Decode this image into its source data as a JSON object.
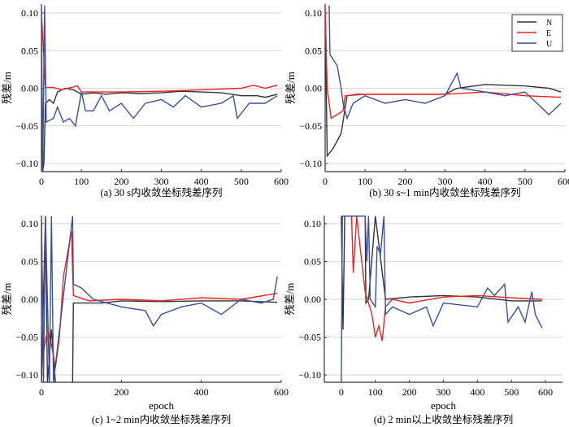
{
  "colors": {
    "N": "#333333",
    "E": "#ee2222",
    "U": "#3a4fa0",
    "grid": "#dddddd"
  },
  "legend": [
    "N",
    "E",
    "U"
  ],
  "chart_data": [
    {
      "type": "line",
      "title": "(a) 30 s内收敛坐标残差序列",
      "xlabel": "",
      "ylabel": "残差/m",
      "xlim": [
        0,
        600
      ],
      "ylim": [
        -0.11,
        0.11
      ],
      "xticks": [
        0,
        100,
        200,
        300,
        400,
        500,
        600
      ],
      "yticks": [
        -0.1,
        -0.05,
        0.0,
        0.05,
        0.1
      ],
      "grid": true,
      "series": [
        {
          "name": "N",
          "points": [
            [
              0,
              0.03
            ],
            [
              3,
              -0.11
            ],
            [
              6,
              -0.1
            ],
            [
              10,
              -0.02
            ],
            [
              20,
              -0.015
            ],
            [
              30,
              -0.02
            ],
            [
              40,
              -0.005
            ],
            [
              60,
              0
            ],
            [
              80,
              -0.002
            ],
            [
              100,
              -0.008
            ],
            [
              130,
              -0.006
            ],
            [
              160,
              -0.008
            ],
            [
              200,
              -0.006
            ],
            [
              250,
              -0.007
            ],
            [
              300,
              -0.006
            ],
            [
              350,
              -0.004
            ],
            [
              400,
              -0.005
            ],
            [
              450,
              -0.006
            ],
            [
              500,
              -0.01
            ],
            [
              540,
              -0.01
            ],
            [
              560,
              -0.012
            ],
            [
              590,
              -0.008
            ]
          ]
        },
        {
          "name": "E",
          "points": [
            [
              0,
              0.1
            ],
            [
              5,
              0.05
            ],
            [
              8,
              0.02
            ],
            [
              10,
              0.001
            ],
            [
              30,
              0.001
            ],
            [
              50,
              -0.002
            ],
            [
              90,
              0.003
            ],
            [
              100,
              -0.005
            ],
            [
              200,
              -0.005
            ],
            [
              300,
              -0.004
            ],
            [
              400,
              -0.002
            ],
            [
              500,
              0
            ],
            [
              530,
              0.004
            ],
            [
              560,
              0
            ],
            [
              590,
              0.004
            ]
          ]
        },
        {
          "name": "U",
          "points": [
            [
              0,
              0.11
            ],
            [
              3,
              -0.11
            ],
            [
              8,
              0.11
            ],
            [
              12,
              -0.045
            ],
            [
              30,
              -0.04
            ],
            [
              40,
              -0.025
            ],
            [
              55,
              -0.045
            ],
            [
              70,
              -0.04
            ],
            [
              85,
              -0.05
            ],
            [
              100,
              -0.005
            ],
            [
              110,
              -0.03
            ],
            [
              130,
              -0.03
            ],
            [
              150,
              -0.01
            ],
            [
              170,
              -0.03
            ],
            [
              200,
              -0.02
            ],
            [
              230,
              -0.04
            ],
            [
              260,
              -0.02
            ],
            [
              300,
              -0.015
            ],
            [
              330,
              -0.025
            ],
            [
              360,
              -0.01
            ],
            [
              400,
              -0.025
            ],
            [
              450,
              -0.02
            ],
            [
              480,
              -0.01
            ],
            [
              490,
              -0.04
            ],
            [
              520,
              -0.02
            ],
            [
              560,
              -0.02
            ],
            [
              590,
              -0.01
            ]
          ]
        }
      ]
    },
    {
      "type": "line",
      "title": "(b) 30 s~1 min内收敛坐标残差序列",
      "xlabel": "",
      "ylabel": "残差/m",
      "xlim": [
        0,
        600
      ],
      "ylim": [
        -0.11,
        0.11
      ],
      "xticks": [
        0,
        100,
        200,
        300,
        400,
        500,
        600
      ],
      "yticks": [
        -0.1,
        -0.05,
        0.0,
        0.05,
        0.1
      ],
      "grid": true,
      "legend": "top-right",
      "series": [
        {
          "name": "N",
          "points": [
            [
              0,
              0.1
            ],
            [
              5,
              -0.09
            ],
            [
              20,
              -0.08
            ],
            [
              40,
              -0.06
            ],
            [
              55,
              -0.01
            ],
            [
              80,
              -0.008
            ],
            [
              200,
              -0.008
            ],
            [
              300,
              -0.008
            ],
            [
              330,
              0.0
            ],
            [
              400,
              0.005
            ],
            [
              500,
              0.003
            ],
            [
              560,
              0.0
            ],
            [
              590,
              -0.005
            ]
          ]
        },
        {
          "name": "E",
          "points": [
            [
              0,
              0.11
            ],
            [
              5,
              0.0
            ],
            [
              15,
              -0.04
            ],
            [
              30,
              -0.035
            ],
            [
              45,
              -0.03
            ],
            [
              50,
              -0.01
            ],
            [
              100,
              -0.008
            ],
            [
              200,
              -0.008
            ],
            [
              300,
              -0.008
            ],
            [
              400,
              -0.005
            ],
            [
              500,
              -0.01
            ],
            [
              590,
              -0.012
            ]
          ]
        },
        {
          "name": "U",
          "points": [
            [
              10,
              0.11
            ],
            [
              12,
              0.045
            ],
            [
              30,
              0.03
            ],
            [
              40,
              0.0
            ],
            [
              45,
              -0.02
            ],
            [
              55,
              -0.04
            ],
            [
              70,
              -0.02
            ],
            [
              100,
              -0.01
            ],
            [
              150,
              -0.02
            ],
            [
              200,
              -0.015
            ],
            [
              250,
              -0.02
            ],
            [
              300,
              -0.01
            ],
            [
              330,
              0.02
            ],
            [
              340,
              0.0
            ],
            [
              400,
              -0.005
            ],
            [
              450,
              -0.01
            ],
            [
              500,
              -0.005
            ],
            [
              530,
              -0.02
            ],
            [
              560,
              -0.035
            ],
            [
              590,
              -0.02
            ]
          ]
        }
      ]
    },
    {
      "type": "line",
      "title": "(c) 1~2 min内收敛坐标残差序列",
      "xlabel": "epoch",
      "ylabel": "残差/m",
      "xlim": [
        0,
        600
      ],
      "ylim": [
        -0.11,
        0.11
      ],
      "xticks": [
        0,
        200,
        400,
        600
      ],
      "yticks": [
        -0.1,
        -0.05,
        0.0,
        0.05,
        0.1
      ],
      "grid": true,
      "series": [
        {
          "name": "N",
          "points": [
            [
              0,
              -0.11
            ],
            [
              10,
              0.11
            ],
            [
              15,
              -0.11
            ],
            [
              25,
              -0.04
            ],
            [
              35,
              -0.11
            ],
            [
              78,
              -0.11
            ],
            [
              80,
              -0.005
            ],
            [
              150,
              -0.005
            ],
            [
              200,
              -0.002
            ],
            [
              300,
              -0.003
            ],
            [
              400,
              -0.002
            ],
            [
              500,
              -0.002
            ],
            [
              590,
              -0.004
            ]
          ]
        },
        {
          "name": "E",
          "points": [
            [
              0,
              0.1
            ],
            [
              5,
              -0.07
            ],
            [
              15,
              -0.04
            ],
            [
              25,
              -0.06
            ],
            [
              35,
              -0.09
            ],
            [
              45,
              -0.05
            ],
            [
              55,
              0.03
            ],
            [
              65,
              0.06
            ],
            [
              75,
              0.09
            ],
            [
              80,
              0.005
            ],
            [
              120,
              -0.002
            ],
            [
              200,
              0.0
            ],
            [
              300,
              -0.002
            ],
            [
              400,
              0.002
            ],
            [
              500,
              0.0
            ],
            [
              590,
              0.008
            ]
          ]
        },
        {
          "name": "U",
          "points": [
            [
              0,
              0.11
            ],
            [
              5,
              -0.11
            ],
            [
              10,
              0.11
            ],
            [
              20,
              -0.11
            ],
            [
              25,
              0.11
            ],
            [
              30,
              -0.11
            ],
            [
              78,
              0.11
            ],
            [
              80,
              0.02
            ],
            [
              100,
              0.015
            ],
            [
              130,
              0.0
            ],
            [
              200,
              -0.01
            ],
            [
              260,
              -0.015
            ],
            [
              280,
              -0.035
            ],
            [
              300,
              -0.02
            ],
            [
              350,
              -0.01
            ],
            [
              400,
              -0.005
            ],
            [
              450,
              -0.02
            ],
            [
              500,
              0.0
            ],
            [
              550,
              -0.005
            ],
            [
              580,
              0.0
            ],
            [
              590,
              0.03
            ]
          ]
        }
      ]
    },
    {
      "type": "line",
      "title": "(d) 2 min以上收敛坐标残差序列",
      "xlabel": "epoch",
      "ylabel": "残差/m",
      "xlim": [
        -50,
        650
      ],
      "ylim": [
        -0.11,
        0.11
      ],
      "xticks": [
        0,
        100,
        200,
        300,
        400,
        500,
        600
      ],
      "yticks": [
        -0.1,
        -0.05,
        0.0,
        0.05,
        0.1
      ],
      "grid": true,
      "series": [
        {
          "name": "N",
          "points": [
            [
              0,
              0.11
            ],
            [
              5,
              -0.04
            ],
            [
              10,
              0.11
            ],
            [
              70,
              0.11
            ],
            [
              72,
              -0.005
            ],
            [
              80,
              0.0
            ],
            [
              100,
              0.11
            ],
            [
              130,
              0.0
            ],
            [
              200,
              0.003
            ],
            [
              300,
              0.005
            ],
            [
              400,
              0.003
            ],
            [
              500,
              -0.002
            ],
            [
              590,
              -0.002
            ]
          ]
        },
        {
          "name": "E",
          "points": [
            [
              30,
              0.11
            ],
            [
              35,
              0.035
            ],
            [
              45,
              0.11
            ],
            [
              70,
              0.01
            ],
            [
              90,
              -0.02
            ],
            [
              100,
              -0.05
            ],
            [
              110,
              -0.035
            ],
            [
              120,
              -0.055
            ],
            [
              130,
              -0.01
            ],
            [
              150,
              0.0
            ],
            [
              200,
              -0.005
            ],
            [
              300,
              0.003
            ],
            [
              400,
              0.005
            ],
            [
              500,
              0.002
            ],
            [
              590,
              0.0
            ]
          ]
        },
        {
          "name": "U",
          "points": [
            [
              0,
              -0.11
            ],
            [
              3,
              0.11
            ],
            [
              70,
              0.11
            ],
            [
              75,
              0.05
            ],
            [
              80,
              0.11
            ],
            [
              85,
              0.0
            ],
            [
              100,
              -0.01
            ],
            [
              105,
              0.07
            ],
            [
              115,
              0.06
            ],
            [
              125,
              0.11
            ],
            [
              130,
              -0.02
            ],
            [
              150,
              -0.01
            ],
            [
              200,
              -0.02
            ],
            [
              250,
              -0.01
            ],
            [
              270,
              -0.035
            ],
            [
              300,
              -0.005
            ],
            [
              400,
              -0.01
            ],
            [
              430,
              0.015
            ],
            [
              450,
              0.005
            ],
            [
              480,
              0.02
            ],
            [
              490,
              -0.03
            ],
            [
              520,
              -0.01
            ],
            [
              540,
              -0.03
            ],
            [
              560,
              0.01
            ],
            [
              570,
              -0.02
            ],
            [
              590,
              -0.038
            ]
          ]
        }
      ]
    }
  ]
}
